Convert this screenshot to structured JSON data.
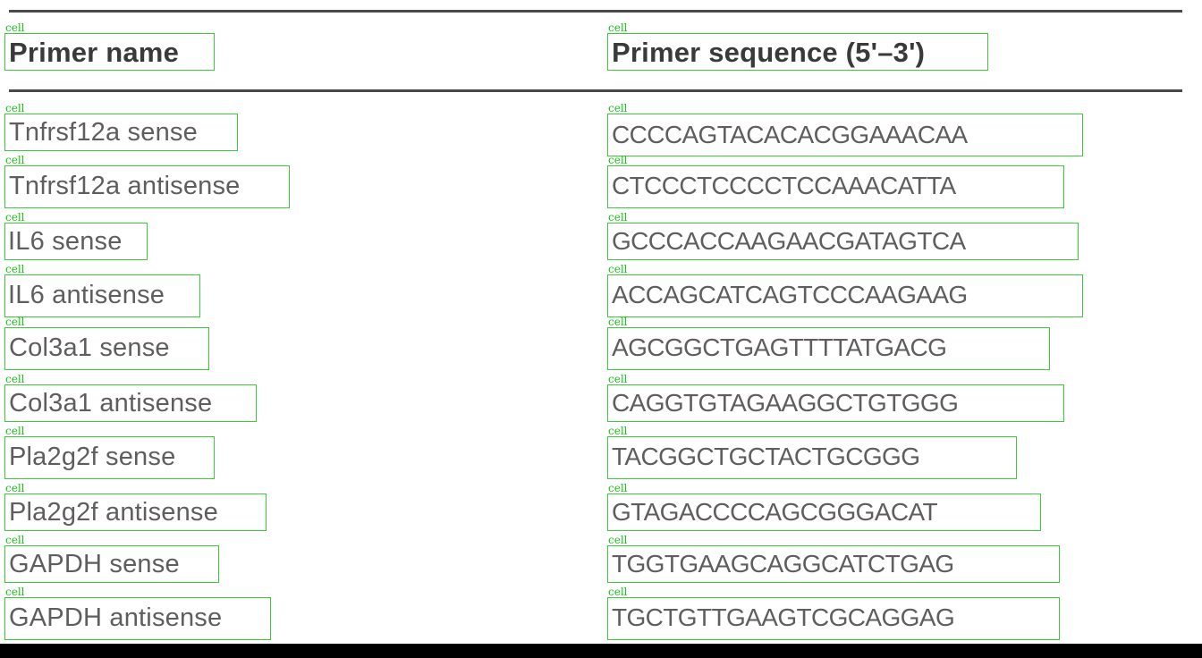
{
  "annotation_label": "cell",
  "table": {
    "headers": [
      "Primer name",
      "Primer sequence (5'–3')"
    ],
    "rows": [
      [
        "Tnfrsf12a sense",
        "CCCCAGTACACACGGAAACAA"
      ],
      [
        "Tnfrsf12a antisense",
        "CTCCCTCCCCTCCAAACATTA"
      ],
      [
        "IL6 sense",
        "GCCCACCAAGAACGATAGTCA"
      ],
      [
        "IL6 antisense",
        "ACCAGCATCAGTCCCAAGAAG"
      ],
      [
        "Col3a1 sense",
        "AGCGGCTGAGTTTTATGACG"
      ],
      [
        "Col3a1 antisense",
        "CAGGTGTAGAAGGCTGTGGG"
      ],
      [
        "Pla2g2f sense",
        "TACGGCTGCTACTGCGGG"
      ],
      [
        "Pla2g2f antisense",
        "GTAGACCCCAGCGGGACAT"
      ],
      [
        "GAPDH sense",
        "TGGTGAAGCAGGCATCTGAG"
      ],
      [
        "GAPDH antisense",
        "TGCTGTTGAAGTCGCAGGAG"
      ]
    ]
  }
}
